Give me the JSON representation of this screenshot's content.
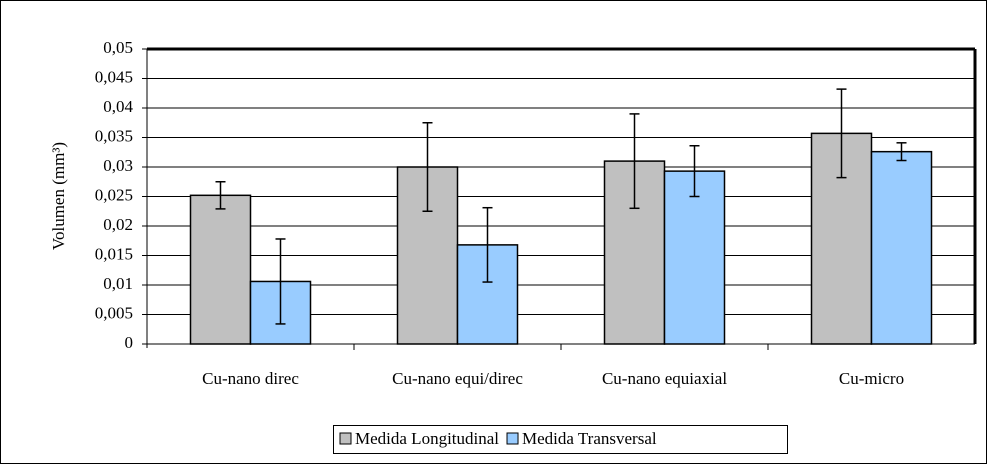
{
  "chart_data": {
    "type": "bar",
    "y_label": "Volumen (mm³)",
    "categories": [
      "Cu-nano direc",
      "Cu-nano equi/direc",
      "Cu-nano  equiaxial",
      "Cu-micro"
    ],
    "series": [
      {
        "name": "Medida Longitudinal",
        "color": "#c0c0c0",
        "values": [
          0.0252,
          0.03,
          0.031,
          0.0357
        ],
        "errors": [
          0.0023,
          0.0075,
          0.008,
          0.0075
        ]
      },
      {
        "name": "Medida Transversal",
        "color": "#99ccff",
        "values": [
          0.0106,
          0.0168,
          0.0293,
          0.0326
        ],
        "errors": [
          0.0072,
          0.0063,
          0.0043,
          0.0015
        ]
      }
    ],
    "ylim": [
      0,
      0.05
    ],
    "yticks": [
      0,
      {
        "value": 0.005,
        "label": "0,005"
      },
      {
        "value": 0.01,
        "label": "0,01"
      },
      {
        "value": 0.015,
        "label": "0,015"
      },
      {
        "value": 0.02,
        "label": "0,02"
      },
      {
        "value": 0.025,
        "label": "0,025"
      },
      {
        "value": 0.03,
        "label": "0,03"
      },
      {
        "value": 0.035,
        "label": "0,035"
      },
      {
        "value": 0.04,
        "label": "0,04"
      },
      {
        "value": 0.045,
        "label": "0,045"
      },
      {
        "value": 0.05,
        "label": "0,05"
      }
    ],
    "grid": true,
    "legend": "bottom"
  }
}
